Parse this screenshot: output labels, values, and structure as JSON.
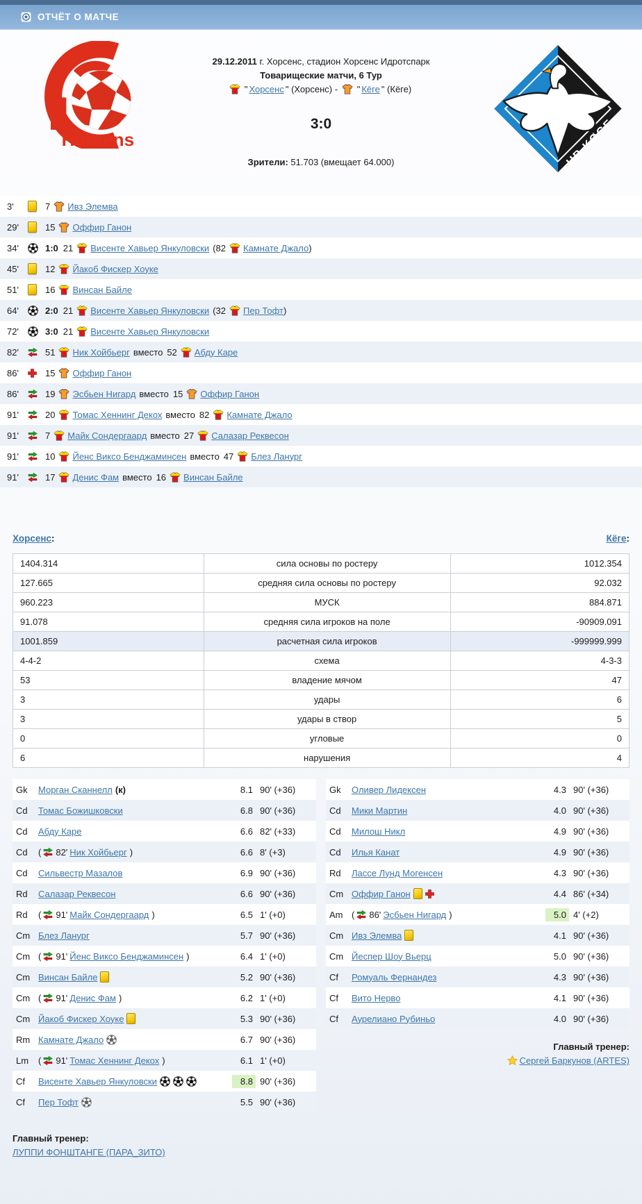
{
  "colors": {
    "top_strip": "#4b6d92",
    "header_bar_top": "#7ba4cd",
    "header_bar_bottom": "#93b8de",
    "link": "#3e76a8",
    "row_alt": "#ecf1f8",
    "rating_highlight": "#d9f2c3",
    "stats_highlight_row": "#e7edf6",
    "horsens_red": "#dd2f1b",
    "horsens_yellow": "#ffd800",
    "koge_orange": "#ff9a25",
    "koge_blue": "#1e86cc",
    "koge_black": "#191919",
    "yellow_card": "#f4c400"
  },
  "punct": {
    "quote": "\"",
    "dash": "-",
    "colon": ":",
    "paren_open": "(",
    "paren_close": ")"
  },
  "header": {
    "title": "ОТЧЁТ О МАТЧЕ"
  },
  "match": {
    "date": "29.12.2011",
    "venue_rest": " г. Хорсенс, стадион Хорсенс Идротспарк",
    "tournament": "Товарищеские матчи, 6 Тур",
    "home_team": {
      "name": "Хорсенс",
      "note": "(Хорсенс)",
      "shirt": "horsens"
    },
    "away_team": {
      "name": "Кёге",
      "note": "(Кёге)",
      "shirt": "koge"
    },
    "score": "3:0",
    "attendance_label": "Зрители:",
    "attendance_value": " 51.703 (вмещает 64.000)",
    "home_logo_text": "Horsens",
    "away_logo_text": "HB KØGE"
  },
  "events": [
    {
      "minute": "3'",
      "icon": "yellow-card",
      "number": "7",
      "shirt": "koge",
      "player": "Ивз Элемва"
    },
    {
      "minute": "29'",
      "icon": "yellow-card",
      "number": "15",
      "shirt": "koge",
      "player": "Оффир Ганон"
    },
    {
      "minute": "34'",
      "icon": "goal",
      "score": "1:0",
      "number": "21",
      "shirt": "horsens",
      "player": "Висенте Хавьер Янкуловски",
      "assist": {
        "number": "82",
        "shirt": "horsens",
        "player": "Камнате Джало"
      }
    },
    {
      "minute": "45'",
      "icon": "yellow-card",
      "number": "12",
      "shirt": "horsens",
      "player": "Йакоб Фискер Хоуке"
    },
    {
      "minute": "51'",
      "icon": "yellow-card",
      "number": "16",
      "shirt": "horsens",
      "player": "Винсан Байле"
    },
    {
      "minute": "64'",
      "icon": "goal",
      "score": "2:0",
      "number": "21",
      "shirt": "horsens",
      "player": "Висенте Хавьер Янкуловски",
      "assist": {
        "number": "32",
        "shirt": "horsens",
        "player": "Пер Тофт"
      }
    },
    {
      "minute": "72'",
      "icon": "goal",
      "score": "3:0",
      "number": "21",
      "shirt": "horsens",
      "player": "Висенте Хавьер Янкуловски"
    },
    {
      "minute": "82'",
      "icon": "substitution",
      "number": "51",
      "shirt": "horsens",
      "player": "Ник Хойбьерг",
      "replaced": {
        "label": "вместо",
        "number": "52",
        "shirt": "horsens",
        "player": "Абду Каре"
      }
    },
    {
      "minute": "86'",
      "icon": "injury",
      "number": "15",
      "shirt": "koge",
      "player": "Оффир Ганон"
    },
    {
      "minute": "86'",
      "icon": "substitution",
      "number": "19",
      "shirt": "koge",
      "player": "Эсбьен Нигард",
      "replaced": {
        "label": "вместо",
        "number": "15",
        "shirt": "koge",
        "player": "Оффир Ганон"
      }
    },
    {
      "minute": "91'",
      "icon": "substitution",
      "number": "20",
      "shirt": "horsens",
      "player": "Томас Хеннинг Декох",
      "replaced": {
        "label": "вместо",
        "number": "82",
        "shirt": "horsens",
        "player": "Камнате Джало"
      }
    },
    {
      "minute": "91'",
      "icon": "substitution",
      "number": "7",
      "shirt": "horsens",
      "player": "Майк Сондергаард",
      "replaced": {
        "label": "вместо",
        "number": "27",
        "shirt": "horsens",
        "player": "Салазар Реквесон"
      }
    },
    {
      "minute": "91'",
      "icon": "substitution",
      "number": "10",
      "shirt": "horsens",
      "player": "Йенс Виксо Бенджаминсен",
      "replaced": {
        "label": "вместо",
        "number": "47",
        "shirt": "horsens",
        "player": "Блез Ланург"
      }
    },
    {
      "minute": "91'",
      "icon": "substitution",
      "number": "17",
      "shirt": "horsens",
      "player": "Денис Фам",
      "replaced": {
        "label": "вместо",
        "number": "16",
        "shirt": "horsens",
        "player": "Винсан Байле"
      }
    }
  ],
  "stats": {
    "home_link": "Хорсенс",
    "away_link": "Кёге",
    "rows": [
      {
        "home": "1404.314",
        "label": "сила основы по ростеру",
        "away": "1012.354"
      },
      {
        "home": "127.665",
        "label": "средняя сила основы по ростеру",
        "away": "92.032"
      },
      {
        "home": "960.223",
        "label": "МУСК",
        "away": "884.871"
      },
      {
        "home": "91.078",
        "label": "средняя сила игроков на поле",
        "away": "-90909.091"
      },
      {
        "home": "1001.859",
        "label": "расчетная сила игроков",
        "away": "-999999.999",
        "highlight": true
      },
      {
        "home": "4-4-2",
        "label": "схема",
        "away": "4-3-3"
      },
      {
        "home": "53",
        "label": "владение мячом",
        "away": "47"
      },
      {
        "home": "3",
        "label": "удары",
        "away": "6"
      },
      {
        "home": "3",
        "label": "удары в створ",
        "away": "5"
      },
      {
        "home": "0",
        "label": "угловые",
        "away": "0"
      },
      {
        "home": "6",
        "label": "нарушения",
        "away": "4"
      }
    ]
  },
  "lineups": {
    "home": {
      "players": [
        {
          "pos": "Gk",
          "name": "Морган Сканнелл",
          "captain": "(к)",
          "rating": "8.1",
          "minutes": "90' (+36)"
        },
        {
          "pos": "Cd",
          "name": "Томас Божишковски",
          "rating": "6.8",
          "minutes": "90' (+36)"
        },
        {
          "pos": "Cd",
          "name": "Абду Каре",
          "rating": "6.6",
          "minutes": "82' (+33)"
        },
        {
          "pos": "Cd",
          "sub": "82'",
          "name": "Ник Хойбьерг",
          "rating": "6.6",
          "minutes": "8' (+3)"
        },
        {
          "pos": "Cd",
          "name": "Сильвестр Мазалов",
          "rating": "6.9",
          "minutes": "90' (+36)"
        },
        {
          "pos": "Rd",
          "name": "Салазар Реквесон",
          "rating": "6.6",
          "minutes": "90' (+36)"
        },
        {
          "pos": "Rd",
          "sub": "91'",
          "name": "Майк Сондергаард",
          "rating": "6.5",
          "minutes": "1' (+0)"
        },
        {
          "pos": "Cm",
          "name": "Блез Ланург",
          "rating": "5.7",
          "minutes": "90' (+36)"
        },
        {
          "pos": "Cm",
          "sub": "91'",
          "name": "Йенс Виксо Бенджаминсен",
          "rating": "6.4",
          "minutes": "1' (+0)"
        },
        {
          "pos": "Cm",
          "name": "Винсан Байле",
          "icons": [
            "yellow-card"
          ],
          "rating": "5.2",
          "minutes": "90' (+36)"
        },
        {
          "pos": "Cm",
          "sub": "91'",
          "name": "Денис Фам",
          "rating": "6.2",
          "minutes": "1' (+0)"
        },
        {
          "pos": "Cm",
          "name": "Йакоб Фискер Хоуке",
          "icons": [
            "yellow-card"
          ],
          "rating": "5.3",
          "minutes": "90' (+36)"
        },
        {
          "pos": "Rm",
          "name": "Камнате Джало",
          "icons": [
            "assist"
          ],
          "rating": "6.7",
          "minutes": "90' (+36)"
        },
        {
          "pos": "Lm",
          "sub": "91'",
          "name": "Томас Хеннинг Декох",
          "rating": "6.1",
          "minutes": "1' (+0)"
        },
        {
          "pos": "Cf",
          "name": "Висенте Хавьер Янкуловски",
          "icons": [
            "goal",
            "goal",
            "goal"
          ],
          "rating": "8.8",
          "rating_highlight": true,
          "minutes": "90' (+36)"
        },
        {
          "pos": "Cf",
          "name": "Пер Тофт",
          "icons": [
            "assist"
          ],
          "rating": "5.5",
          "minutes": "90' (+36)"
        }
      ],
      "coach_label": "Главный тренер:",
      "coach_name": "ЛУППИ ФОНШТАНГЕ (ПАРА_ЗИТО)"
    },
    "away": {
      "players": [
        {
          "pos": "Gk",
          "name": "Оливер Лидексен",
          "rating": "4.3",
          "minutes": "90' (+36)"
        },
        {
          "pos": "Cd",
          "name": "Мики Мартин",
          "rating": "4.0",
          "minutes": "90' (+36)"
        },
        {
          "pos": "Cd",
          "name": "Милош Никл",
          "rating": "4.9",
          "minutes": "90' (+36)"
        },
        {
          "pos": "Cd",
          "name": "Илья Канат",
          "rating": "4.9",
          "minutes": "90' (+36)"
        },
        {
          "pos": "Rd",
          "name": "Лассе Лунд Могенсен",
          "rating": "4.3",
          "minutes": "90' (+36)"
        },
        {
          "pos": "Cm",
          "name": "Оффир Ганон",
          "icons": [
            "yellow-card",
            "injury"
          ],
          "rating": "4.4",
          "minutes": "86' (+34)"
        },
        {
          "pos": "Am",
          "sub": "86'",
          "name": "Эсбьен Нигард",
          "rating": "5.0",
          "rating_highlight": true,
          "minutes": "4' (+2)"
        },
        {
          "pos": "Cm",
          "name": "Ивз Элемва",
          "icons": [
            "yellow-card"
          ],
          "rating": "4.1",
          "minutes": "90' (+36)"
        },
        {
          "pos": "Cm",
          "name": "Йеспер Шоу Вьерц",
          "rating": "5.0",
          "minutes": "90' (+36)"
        },
        {
          "pos": "Cf",
          "name": "Ромуаль Фернандез",
          "rating": "4.3",
          "minutes": "90' (+36)"
        },
        {
          "pos": "Cf",
          "name": "Вито Нерво",
          "rating": "4.1",
          "minutes": "90' (+36)"
        },
        {
          "pos": "Cf",
          "name": "Аурелиано Рубиньо",
          "rating": "4.0",
          "minutes": "90' (+36)"
        }
      ],
      "coach_label": "Главный тренер:",
      "coach_name": "Сергей Баркунов (ARTES)"
    }
  }
}
